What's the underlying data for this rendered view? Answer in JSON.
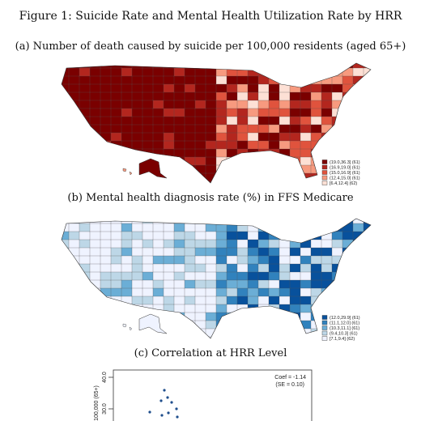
{
  "header": {
    "title": "Figure 1: Suicide Rate and Mental Health Utilization Rate by HRR"
  },
  "panels": [
    {
      "caption": "(a) Number of death caused by suicide per 100,000 residents (aged 65+)",
      "legend": [
        "(19.0,36.3] (61)",
        "(16.9,19.0] (61)",
        "(15.0,16.9] (61)",
        "(12.4,15.0] (61)",
        "[6.4,12.4] (62)"
      ]
    },
    {
      "caption": "(b) Mental health diagnosis rate (%) in FFS Medicare",
      "legend": [
        "(12.0,29.9] (61)",
        "(11.1,12.0] (61)",
        "(10.3,11.1] (61)",
        "(9.4,10.3] (61)",
        "[7.1,9.4] (62)"
      ]
    },
    {
      "caption": "(c) Correlation at HRR Level",
      "y_axis_label": "100,000 (65+)",
      "y_ticks": [
        "40.0",
        "30.0"
      ],
      "annotation": [
        "Coef = -1.14",
        "(SE = 0.10)"
      ]
    }
  ]
}
